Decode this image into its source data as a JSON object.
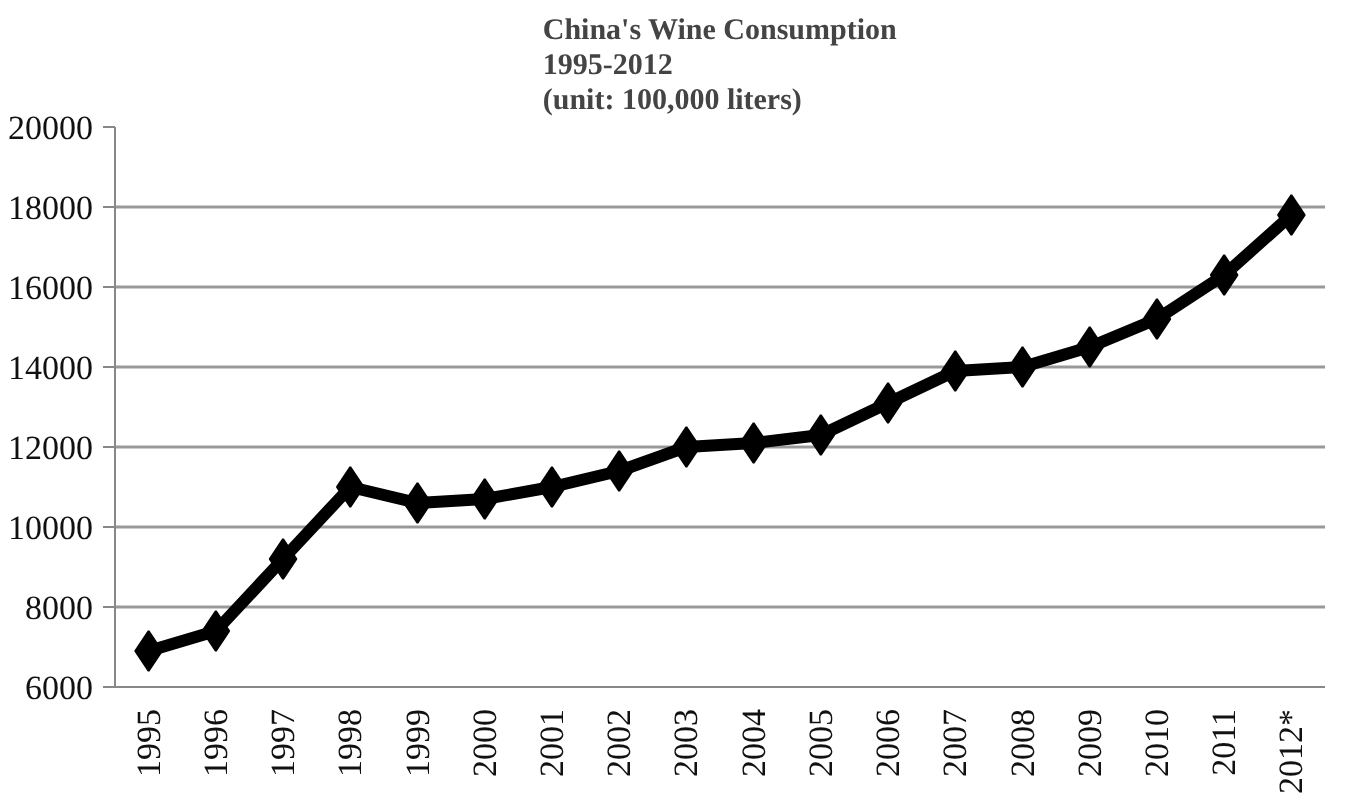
{
  "chart_data": {
    "type": "line",
    "title": "China's Wine Consumption\n1995-2012\n(unit: 100,000 liters)",
    "categories": [
      "1995",
      "1996",
      "1997",
      "1998",
      "1999",
      "2000",
      "2001",
      "2002",
      "2003",
      "2004",
      "2005",
      "2006",
      "2007",
      "2008",
      "2009",
      "2010",
      "2011",
      "2012*"
    ],
    "series": [
      {
        "color": "#000000",
        "values": [
          6900,
          7400,
          9200,
          11000,
          10600,
          10700,
          11000,
          11400,
          12000,
          12100,
          12300,
          13100,
          13900,
          14000,
          14500,
          15200,
          16300,
          17800
        ]
      }
    ],
    "ylim": [
      6000,
      20000
    ],
    "yticks": [
      6000,
      8000,
      10000,
      12000,
      14000,
      16000,
      18000,
      20000
    ],
    "grid": "y",
    "marker": "diamond",
    "line_style": "solid"
  }
}
